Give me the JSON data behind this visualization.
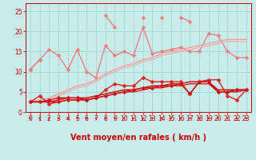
{
  "title": "",
  "xlabel": "Vent moyen/en rafales ( km/h )",
  "ylabel": "",
  "xlim": [
    -0.5,
    23.5
  ],
  "ylim": [
    0,
    27
  ],
  "bg_color": "#c8ecea",
  "grid_color": "#a8d8d8",
  "series": [
    {
      "label": "salmon_spiky_upper",
      "color": "#f08080",
      "lw": 1.0,
      "marker": "D",
      "markersize": 2.5,
      "y": [
        10.5,
        13.0,
        null,
        null,
        null,
        null,
        null,
        null,
        24.0,
        21.0,
        null,
        null,
        23.5,
        null,
        23.5,
        null,
        23.5,
        22.5,
        null,
        null,
        null,
        null,
        null,
        null
      ]
    },
    {
      "label": "salmon_wavy",
      "color": "#f08080",
      "lw": 1.0,
      "marker": "D",
      "markersize": 2.5,
      "y": [
        10.5,
        13.0,
        15.5,
        14.0,
        10.5,
        15.5,
        10.0,
        8.5,
        16.5,
        14.0,
        15.0,
        14.0,
        21.0,
        14.5,
        15.0,
        15.5,
        16.0,
        15.0,
        15.0,
        19.5,
        19.0,
        15.0,
        13.5,
        13.5
      ]
    },
    {
      "label": "salmon_linear1",
      "color": "#f4a0a0",
      "lw": 1.0,
      "marker": null,
      "markersize": 0,
      "y": [
        2.5,
        3.0,
        3.5,
        4.5,
        5.5,
        6.5,
        7.0,
        8.0,
        9.5,
        10.5,
        11.5,
        12.0,
        13.0,
        13.5,
        14.5,
        15.0,
        15.5,
        16.0,
        16.5,
        17.0,
        17.5,
        18.0,
        18.0,
        18.0
      ]
    },
    {
      "label": "salmon_linear2",
      "color": "#f0b0b0",
      "lw": 1.0,
      "marker": null,
      "markersize": 0,
      "y": [
        2.5,
        3.0,
        3.5,
        4.0,
        5.0,
        6.0,
        6.5,
        7.5,
        9.0,
        10.0,
        11.0,
        11.5,
        12.5,
        13.0,
        14.0,
        14.5,
        15.0,
        15.5,
        16.0,
        16.5,
        17.0,
        17.5,
        17.5,
        17.5
      ]
    },
    {
      "label": "red_spiky_upper",
      "color": "#e02020",
      "lw": 1.0,
      "marker": "D",
      "markersize": 2.5,
      "y": [
        2.5,
        4.0,
        2.0,
        2.5,
        3.0,
        3.0,
        3.0,
        3.5,
        5.5,
        7.0,
        6.5,
        6.5,
        8.5,
        7.5,
        7.5,
        7.5,
        7.5,
        4.5,
        7.5,
        8.0,
        8.0,
        4.0,
        3.0,
        5.5
      ]
    },
    {
      "label": "red_linear1",
      "color": "#cc0000",
      "lw": 1.0,
      "marker": null,
      "markersize": 0,
      "y": [
        2.5,
        2.5,
        2.5,
        3.0,
        3.5,
        3.5,
        3.5,
        4.0,
        4.5,
        5.0,
        5.5,
        5.5,
        6.0,
        6.5,
        6.5,
        7.0,
        7.0,
        7.5,
        7.5,
        7.5,
        5.5,
        5.5,
        5.5,
        5.5
      ]
    },
    {
      "label": "red_linear2",
      "color": "#dd1111",
      "lw": 1.0,
      "marker": null,
      "markersize": 0,
      "y": [
        2.5,
        2.5,
        2.5,
        2.5,
        3.0,
        3.0,
        3.0,
        3.5,
        4.0,
        4.5,
        5.0,
        5.0,
        5.5,
        6.0,
        6.0,
        6.5,
        6.5,
        7.0,
        7.0,
        7.0,
        5.0,
        5.0,
        5.0,
        5.5
      ]
    },
    {
      "label": "red_wavy_lower",
      "color": "#cc1111",
      "lw": 1.0,
      "marker": "D",
      "markersize": 2.5,
      "y": [
        2.5,
        2.5,
        3.0,
        3.5,
        3.5,
        3.5,
        3.0,
        3.5,
        4.0,
        4.5,
        5.0,
        5.5,
        6.0,
        6.0,
        6.5,
        6.5,
        7.0,
        4.5,
        7.5,
        7.5,
        5.0,
        5.0,
        5.5,
        5.5
      ]
    }
  ],
  "xticks": [
    0,
    1,
    2,
    3,
    4,
    5,
    6,
    7,
    8,
    9,
    10,
    11,
    12,
    13,
    14,
    15,
    16,
    17,
    18,
    19,
    20,
    21,
    22,
    23
  ],
  "yticks": [
    0,
    5,
    10,
    15,
    20,
    25
  ],
  "tick_color": "#cc0000",
  "tick_fontsize": 5.5,
  "label_fontsize": 7,
  "arrow_color": "#cc0000",
  "wind_dirs": [
    "↙",
    "↓↙",
    "↓",
    "↓",
    "↙",
    "↓",
    "↙",
    "↙↗",
    "↖",
    "↙",
    "↓",
    "↖↙",
    "↓",
    "↖",
    "↙",
    "↗",
    "↖",
    "↓",
    "↖",
    "↙",
    "↓",
    "↙",
    "↓",
    "↓"
  ]
}
